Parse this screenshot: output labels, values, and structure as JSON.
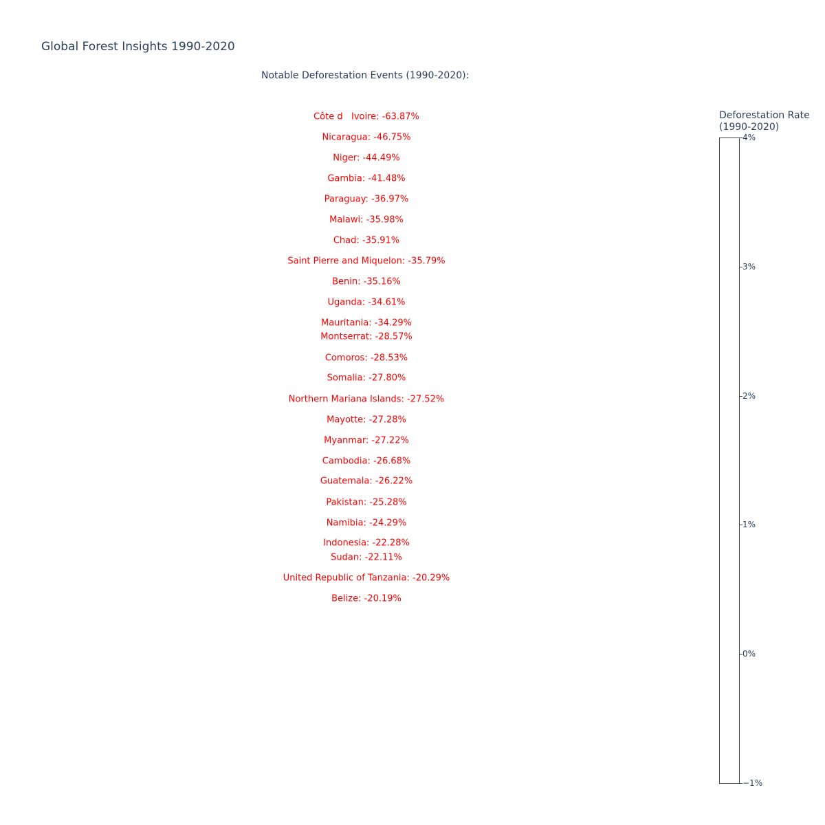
{
  "chart_data": {
    "type": "table",
    "title": "Global Forest Insights 1990-2020",
    "annotation_title": "Notable Deforestation Events (1990-2020):",
    "annotation_color": "#ff0000",
    "events": [
      {
        "country": "Côte d   Ivoire",
        "value": -63.87,
        "label": "Côte d   Ivoire: -63.87%"
      },
      {
        "country": "Nicaragua",
        "value": -46.75,
        "label": "Nicaragua: -46.75%"
      },
      {
        "country": "Niger",
        "value": -44.49,
        "label": "Niger: -44.49%"
      },
      {
        "country": "Gambia",
        "value": -41.48,
        "label": "Gambia: -41.48%"
      },
      {
        "country": "Paraguay",
        "value": -36.97,
        "label": "Paraguay: -36.97%"
      },
      {
        "country": "Malawi",
        "value": -35.98,
        "label": "Malawi: -35.98%"
      },
      {
        "country": "Chad",
        "value": -35.91,
        "label": "Chad: -35.91%"
      },
      {
        "country": "Saint Pierre and Miquelon",
        "value": -35.79,
        "label": "Saint Pierre and Miquelon: -35.79%"
      },
      {
        "country": "Benin",
        "value": -35.16,
        "label": "Benin: -35.16%"
      },
      {
        "country": "Uganda",
        "value": -34.61,
        "label": "Uganda: -34.61%"
      },
      {
        "country": "Mauritania",
        "value": -34.29,
        "label": "Mauritania: -34.29%"
      },
      {
        "country": "Montserrat",
        "value": -28.57,
        "label": "Montserrat: -28.57%"
      },
      {
        "country": "Comoros",
        "value": -28.53,
        "label": "Comoros: -28.53%"
      },
      {
        "country": "Somalia",
        "value": -27.8,
        "label": "Somalia: -27.80%"
      },
      {
        "country": "Northern Mariana Islands",
        "value": -27.52,
        "label": "Northern Mariana Islands: -27.52%"
      },
      {
        "country": "Mayotte",
        "value": -27.28,
        "label": "Mayotte: -27.28%"
      },
      {
        "country": "Myanmar",
        "value": -27.22,
        "label": "Myanmar: -27.22%"
      },
      {
        "country": "Cambodia",
        "value": -26.68,
        "label": "Cambodia: -26.68%"
      },
      {
        "country": "Guatemala",
        "value": -26.22,
        "label": "Guatemala: -26.22%"
      },
      {
        "country": "Pakistan",
        "value": -25.28,
        "label": "Pakistan: -25.28%"
      },
      {
        "country": "Namibia",
        "value": -24.29,
        "label": "Namibia: -24.29%"
      },
      {
        "country": "Indonesia",
        "value": -22.28,
        "label": "Indonesia: -22.28%"
      },
      {
        "country": "Sudan",
        "value": -22.11,
        "label": "Sudan: -22.11%"
      },
      {
        "country": "United Republic of Tanzania",
        "value": -20.29,
        "label": "United Republic of Tanzania: -20.29%"
      },
      {
        "country": "Belize",
        "value": -20.19,
        "label": "Belize: -20.19%"
      }
    ],
    "colorbar": {
      "title_line1": "Deforestation Rate",
      "title_line2": "(1990-2020)",
      "range": [
        -1,
        4
      ],
      "ticks": [
        {
          "value": 4,
          "label": "4%"
        },
        {
          "value": 3,
          "label": "3%"
        },
        {
          "value": 2,
          "label": "2%"
        },
        {
          "value": 1,
          "label": "1%"
        },
        {
          "value": 0,
          "label": "0%"
        },
        {
          "value": -1,
          "label": "−1%"
        }
      ]
    }
  }
}
